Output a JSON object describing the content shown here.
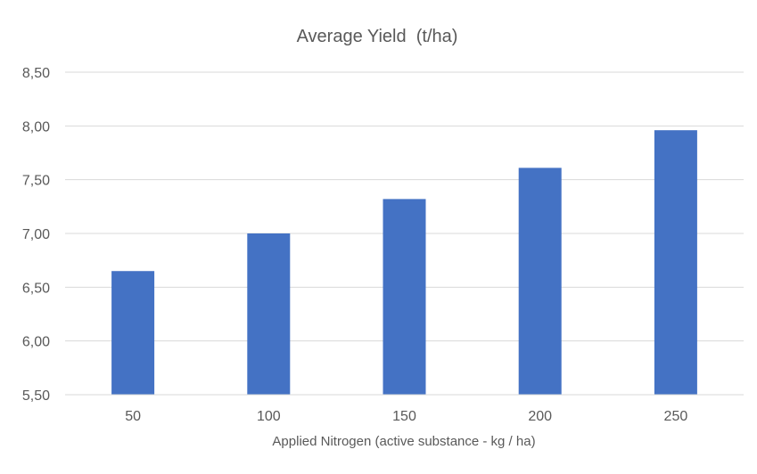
{
  "chart_data": {
    "type": "bar",
    "title": "Average Yield  (t/ha)",
    "xlabel": "Applied Nitrogen (active substance - kg / ha)",
    "ylabel": "",
    "categories": [
      "50",
      "100",
      "150",
      "200",
      "250"
    ],
    "values": [
      6.65,
      7.0,
      7.32,
      7.61,
      7.96
    ],
    "ylim": [
      5.5,
      8.5
    ],
    "yticks": [
      5.5,
      6.0,
      6.5,
      7.0,
      7.5,
      8.0,
      8.5
    ],
    "ytick_labels": [
      "5,50",
      "6,00",
      "6,50",
      "7,00",
      "7,50",
      "8,00",
      "8,50"
    ],
    "grid": true,
    "legend": "none",
    "colors": {
      "bar": "#4472C4",
      "grid": "#D9D9D9",
      "text": "#595959"
    }
  }
}
